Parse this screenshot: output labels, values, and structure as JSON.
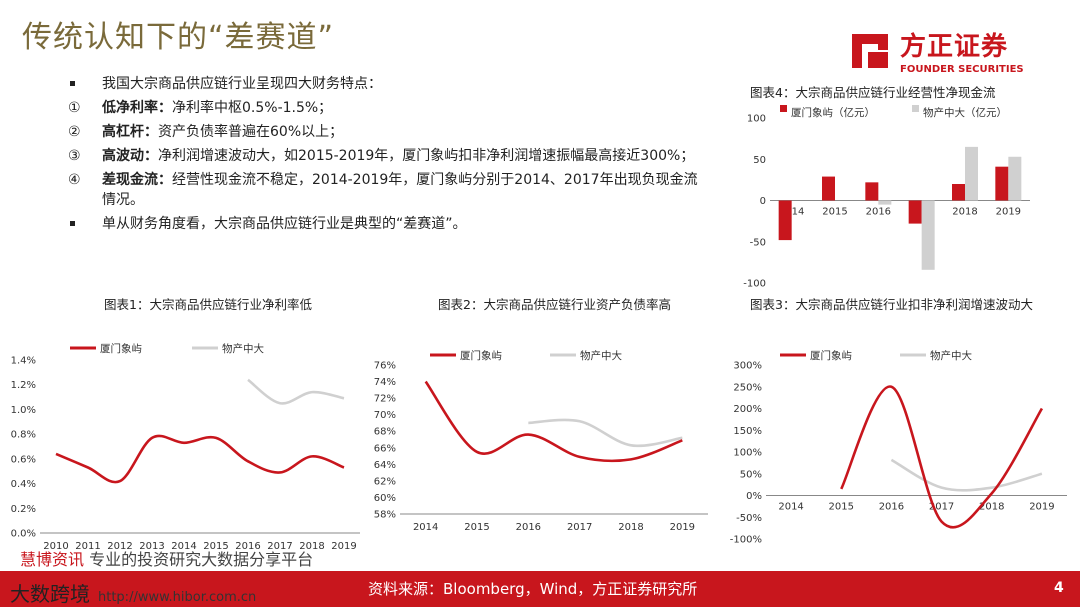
{
  "page": {
    "title": "传统认知下的“差赛道”",
    "logo": {
      "cn": "方正证券",
      "en": "FOUNDER SECURITIES"
    },
    "bullets": [
      {
        "marker": "▪",
        "bold": "",
        "text": "我国大宗商品供应链行业呈现四大财务特点："
      },
      {
        "marker": "①",
        "bold": "低净利率：",
        "text": "净利率中枢0.5%-1.5%；"
      },
      {
        "marker": "②",
        "bold": "高杠杆：",
        "text": "资产负债率普遍在60%以上；"
      },
      {
        "marker": "③",
        "bold": "高波动：",
        "text": "净利润增速波动大，如2015-2019年，厦门象屿扣非净利润增速振幅最高接近300%；"
      },
      {
        "marker": "④",
        "bold": "差现金流：",
        "text": "经营性现金流不稳定，2014-2019年，厦门象屿分别于2014、2017年出现负现金流情况。"
      },
      {
        "marker": "▪",
        "bold": "",
        "text": "单从财务角度看，大宗商品供应链行业是典型的“差赛道”。"
      }
    ],
    "source": "资料来源：Bloomberg，Wind，方正证券研究所",
    "page_number": "4",
    "watermark": {
      "line1_hl": "慧博资讯",
      "line1": "专业的投资研究大数据分享平台",
      "line2_big": "大数跨境",
      "line2": "http://www.hibor.com.cn"
    }
  },
  "chart_data": [
    {
      "id": "chart1",
      "type": "line",
      "caption": "图表1：大宗商品供应链行业净利率低",
      "categories": [
        "2010",
        "2011",
        "2012",
        "2013",
        "2014",
        "2015",
        "2016",
        "2017",
        "2018",
        "2019"
      ],
      "series": [
        {
          "name": "厦门象屿",
          "color": "#c8161d",
          "values": [
            0.64,
            0.53,
            0.42,
            0.77,
            0.73,
            0.77,
            0.58,
            0.49,
            0.62,
            0.53
          ]
        },
        {
          "name": "物产中大",
          "color": "#d0d0d0",
          "values": [
            null,
            null,
            null,
            null,
            null,
            null,
            1.24,
            1.05,
            1.14,
            1.09
          ]
        }
      ],
      "ylim": [
        0,
        1.4
      ],
      "yticks": [
        0,
        0.2,
        0.4,
        0.6,
        0.8,
        1.0,
        1.2,
        1.4
      ],
      "ytick_labels": [
        "0.0%",
        "0.2%",
        "0.4%",
        "0.6%",
        "0.8%",
        "1.0%",
        "1.2%",
        "1.4%"
      ],
      "legend": "top"
    },
    {
      "id": "chart2",
      "type": "line",
      "caption": "图表2：大宗商品供应链行业资产负债率高",
      "categories": [
        "2014",
        "2015",
        "2016",
        "2017",
        "2018",
        "2019"
      ],
      "series": [
        {
          "name": "厦门象屿",
          "color": "#c8161d",
          "values": [
            74.0,
            65.5,
            67.6,
            64.9,
            64.6,
            66.9
          ]
        },
        {
          "name": "物产中大",
          "color": "#d0d0d0",
          "values": [
            null,
            null,
            69.0,
            69.2,
            66.3,
            67.2
          ]
        }
      ],
      "ylim": [
        58,
        76
      ],
      "yticks": [
        58,
        60,
        62,
        64,
        66,
        68,
        70,
        72,
        74,
        76
      ],
      "ytick_labels": [
        "58%",
        "60%",
        "62%",
        "64%",
        "66%",
        "68%",
        "70%",
        "72%",
        "74%",
        "76%"
      ],
      "legend": "top"
    },
    {
      "id": "chart3",
      "type": "line",
      "caption": "图表3：大宗商品供应链行业扣非净利润增速波动大",
      "categories": [
        "2014",
        "2015",
        "2016",
        "2017",
        "2018",
        "2019"
      ],
      "series": [
        {
          "name": "厦门象屿",
          "color": "#c8161d",
          "values": [
            null,
            15,
            250,
            -60,
            5,
            200
          ]
        },
        {
          "name": "物产中大",
          "color": "#d0d0d0",
          "values": [
            null,
            null,
            82,
            18,
            18,
            50
          ]
        }
      ],
      "ylim": [
        -100,
        300
      ],
      "yticks": [
        -100,
        -50,
        0,
        50,
        100,
        150,
        200,
        250,
        300
      ],
      "ytick_labels": [
        "-100%",
        "-50%",
        "0%",
        "50%",
        "100%",
        "150%",
        "200%",
        "250%",
        "300%"
      ],
      "legend": "top"
    },
    {
      "id": "chart4",
      "type": "bar",
      "caption": "图表4：大宗商品供应链行业经营性净现金流",
      "categories": [
        "2014",
        "2015",
        "2016",
        "2017",
        "2018",
        "2019"
      ],
      "series": [
        {
          "name": "厦门象屿（亿元）",
          "color": "#c8161d",
          "values": [
            -48,
            29,
            22,
            -28,
            20,
            41
          ]
        },
        {
          "name": "物产中大（亿元）",
          "color": "#d0d0d0",
          "values": [
            0,
            0,
            -5,
            -84,
            65,
            53
          ]
        }
      ],
      "ylim": [
        -100,
        100
      ],
      "yticks": [
        -100,
        -50,
        0,
        50,
        100
      ],
      "ytick_labels": [
        "-100",
        "-50",
        "0",
        "50",
        "100"
      ],
      "legend": "top"
    }
  ]
}
